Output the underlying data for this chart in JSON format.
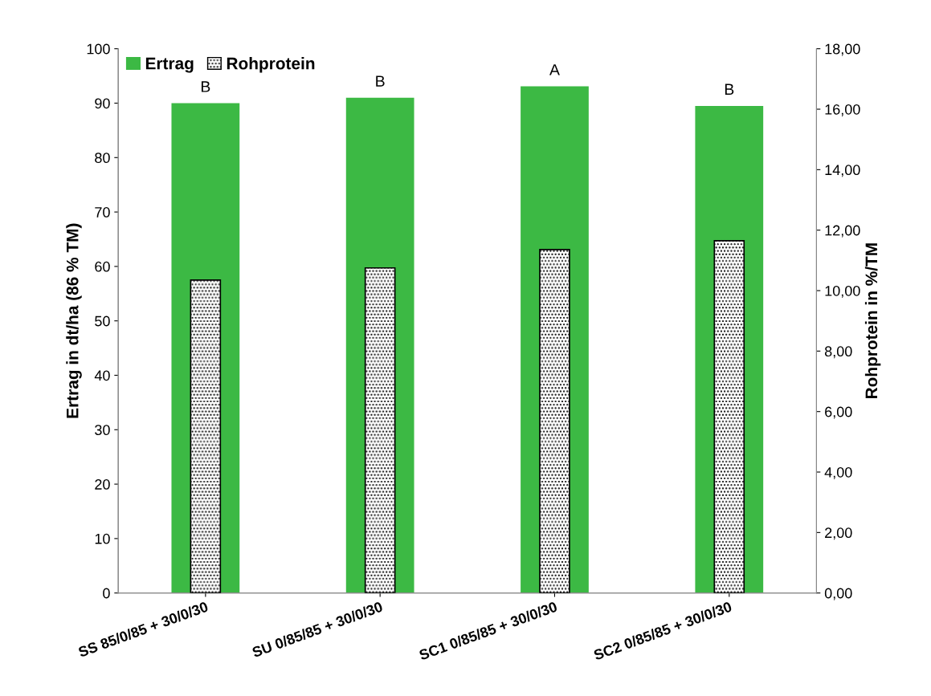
{
  "chart_data": {
    "type": "bar",
    "ylabel": "Ertrag in dt/ha (86 % TM)",
    "y2label": "Rohprotein in %/TM",
    "categories": [
      "SS 85/0/85 + 30/0/30",
      "SU 0/85/85 + 30/0/30",
      "SC1 0/85/85 + 30/0/30",
      "SC2 0/85/85 + 30/0/30"
    ],
    "series": [
      {
        "name": "Ertrag",
        "color": "#3cb944",
        "values": [
          90.0,
          91.0,
          93.1,
          89.5
        ]
      },
      {
        "name": "Rohprotein",
        "color": "#000000",
        "axis": "y2",
        "values": [
          10.35,
          10.75,
          11.36,
          11.65
        ]
      }
    ],
    "ylim": [
      0,
      100
    ],
    "yticks": [
      0,
      10,
      20,
      30,
      40,
      50,
      60,
      70,
      80,
      90,
      100
    ],
    "y2lim": [
      0,
      18
    ],
    "y2ticks": [
      {
        "value": 0,
        "label": "0,00"
      },
      {
        "value": 2,
        "label": "2,00"
      },
      {
        "value": 4,
        "label": "4,00"
      },
      {
        "value": 6,
        "label": "6,00"
      },
      {
        "value": 8,
        "label": "8,00"
      },
      {
        "value": 10,
        "label": "10,00"
      },
      {
        "value": 12,
        "label": "12,00"
      },
      {
        "value": 14,
        "label": "14,00"
      },
      {
        "value": 16,
        "label": "16,00"
      },
      {
        "value": 18,
        "label": "18,00"
      }
    ],
    "annotations": [
      {
        "text": "B",
        "x": "SS 85/0/85 + 30/0/30",
        "y": 90.0
      },
      {
        "text": "B",
        "x": "SU 0/85/85 + 30/0/30",
        "y": 91.0
      },
      {
        "text": "A",
        "x": "SC1 0/85/85 + 30/0/30",
        "y": 93.1
      },
      {
        "text": "B",
        "x": "SC2 0/85/85 + 30/0/30",
        "y": 89.5
      }
    ],
    "legend": "top left",
    "grid": false
  }
}
